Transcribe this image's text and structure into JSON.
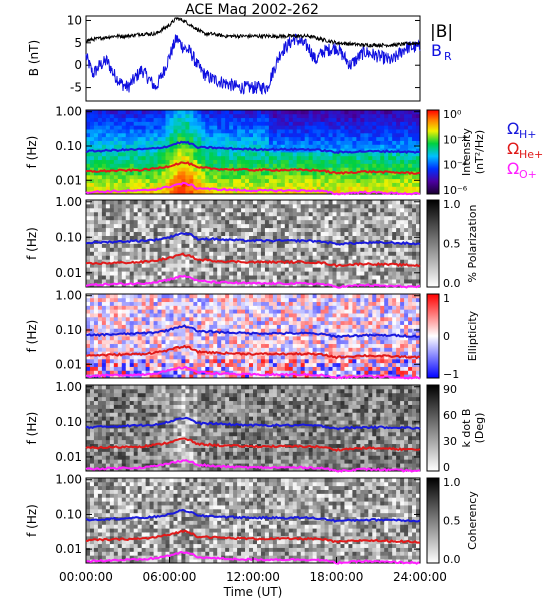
{
  "chart_data": {
    "type": "line",
    "title": "ACE Mag 2002-262",
    "xlabel": "Time (UT)",
    "x_ticks": [
      "00:00:00",
      "06:00:00",
      "12:00:00",
      "18:00:00",
      "24:00:00"
    ],
    "xlim_hours": [
      0,
      24
    ],
    "colors": {
      "B": "#000000",
      "BR": "#1010e0",
      "H": "#1a1adc",
      "He": "#e01a1a",
      "O": "#ff20ff"
    },
    "top_panel": {
      "ylabel": "B (nT)",
      "ylim": [
        -8,
        11
      ],
      "y_ticks": [
        "10",
        "5",
        "0",
        "-5"
      ],
      "legend": [
        {
          "label": "|B|",
          "color": "#000000"
        },
        {
          "label": "B",
          "sub": "R",
          "color": "#1010e0"
        }
      ],
      "series": [
        {
          "name": "|B|",
          "x": [
            0,
            1,
            2,
            3,
            4,
            5,
            6,
            6.5,
            7,
            7.5,
            8,
            8.5,
            9,
            10,
            12,
            14,
            16,
            18,
            20,
            22,
            24
          ],
          "y": [
            5.5,
            6,
            6.5,
            6.5,
            7,
            7,
            9,
            10.5,
            10,
            9,
            8,
            7,
            7,
            6.5,
            6.5,
            6.5,
            6.5,
            5,
            4.5,
            4.5,
            5
          ]
        },
        {
          "name": "BR",
          "x": [
            0,
            0.5,
            1,
            1.5,
            2,
            2.5,
            3,
            3.5,
            4,
            4.5,
            5,
            5.5,
            6,
            6.5,
            7,
            7.5,
            8,
            8.5,
            9,
            10,
            11,
            12,
            13,
            14,
            15,
            16,
            16.5,
            17,
            18,
            19,
            20,
            21,
            22,
            23,
            24
          ],
          "y": [
            2,
            -2,
            0,
            1,
            -2,
            -4,
            -5,
            -3,
            -1,
            -3,
            -5,
            -2,
            2,
            6,
            4,
            3,
            0,
            -2,
            -3,
            -4,
            -5,
            -5,
            -5,
            3,
            6,
            4,
            1,
            3,
            4,
            0,
            3,
            2,
            1,
            4,
            4
          ]
        }
      ]
    },
    "spectrograms": [
      {
        "label": "Intensity",
        "unit_lines": [
          "Intensity",
          "(nT²/Hz)"
        ],
        "colorbar": "rainbow",
        "ticks": [
          "10⁰",
          "10⁻²",
          "10⁻⁴",
          "10⁻⁶"
        ]
      },
      {
        "label": "% Polarization",
        "unit_lines": [
          "% Polarization"
        ],
        "colorbar": "gray",
        "ticks": [
          "1.0",
          "0.5",
          "0.0"
        ]
      },
      {
        "label": "Ellipticity",
        "unit_lines": [
          "Ellipticity"
        ],
        "colorbar": "bwr",
        "ticks": [
          "1",
          "0",
          "−1"
        ]
      },
      {
        "label": "k dot B (Deg)",
        "unit_lines": [
          "k dot B",
          "(Deg)"
        ],
        "colorbar": "gray",
        "ticks": [
          "90",
          "60",
          "30",
          "0"
        ]
      },
      {
        "label": "Coherency",
        "unit_lines": [
          "Coherency"
        ],
        "colorbar": "gray",
        "ticks": [
          "1.0",
          "0.5",
          "0.0"
        ]
      }
    ],
    "spectrogram_axis": {
      "ylabel": "f (Hz)",
      "y_ticks": [
        "1.00",
        "0.10",
        "0.01"
      ],
      "ylim_log10": [
        -2.4,
        0.05
      ]
    },
    "gyro_legend": [
      {
        "label": "Ω",
        "sub": "H+",
        "color": "#1a1adc"
      },
      {
        "label": "Ω",
        "sub": "He+",
        "color": "#e01a1a"
      },
      {
        "label": "Ω",
        "sub": "O+",
        "color": "#ff20ff"
      }
    ],
    "gyro_lines": {
      "x": [
        0,
        2,
        4,
        5,
        6,
        6.5,
        7,
        7.5,
        8,
        8.5,
        9,
        10,
        12,
        14,
        16,
        17,
        18,
        20,
        22,
        24
      ],
      "H": [
        0.07,
        0.075,
        0.08,
        0.085,
        0.1,
        0.12,
        0.13,
        0.12,
        0.09,
        0.09,
        0.09,
        0.085,
        0.08,
        0.08,
        0.08,
        0.075,
        0.065,
        0.07,
        0.07,
        0.065
      ],
      "He": [
        0.018,
        0.019,
        0.02,
        0.022,
        0.026,
        0.03,
        0.033,
        0.03,
        0.023,
        0.023,
        0.022,
        0.021,
        0.02,
        0.02,
        0.02,
        0.019,
        0.016,
        0.018,
        0.017,
        0.016
      ],
      "O": [
        0.0045,
        0.0048,
        0.005,
        0.0055,
        0.0065,
        0.0075,
        0.008,
        0.0075,
        0.0058,
        0.0058,
        0.0055,
        0.0053,
        0.005,
        0.005,
        0.005,
        0.0048,
        0.004,
        0.0045,
        0.0042,
        0.004
      ]
    }
  }
}
